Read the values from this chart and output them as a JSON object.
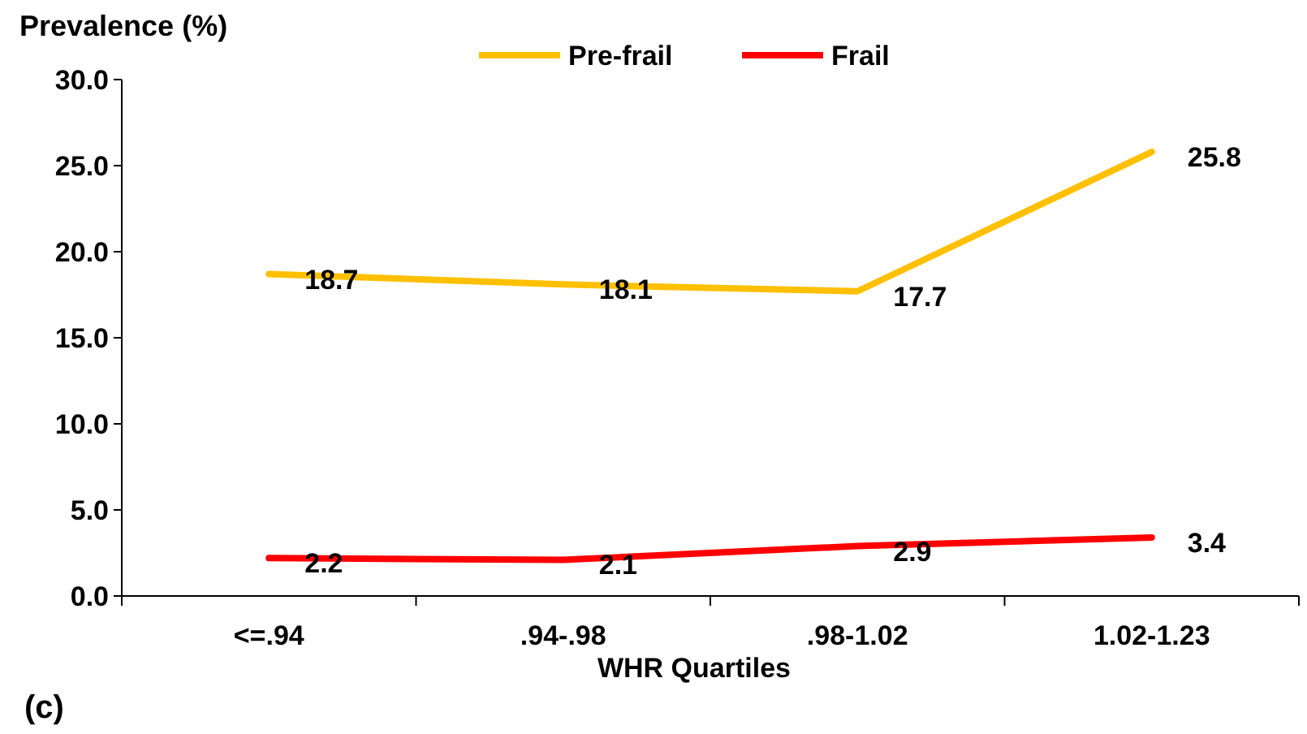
{
  "chart_data": {
    "type": "line",
    "ylabel": "Prevalence (%)",
    "xlabel": "WHR Quartiles",
    "annotations": [
      "(c)"
    ],
    "categories": [
      "<=.94",
      ".94-.98",
      ".98-1.02",
      "1.02-1.23"
    ],
    "series": [
      {
        "name": "Pre-frail",
        "color": "#ffc000",
        "values": [
          18.7,
          18.1,
          17.7,
          25.8
        ]
      },
      {
        "name": "Frail",
        "color": "#ff0000",
        "values": [
          2.2,
          2.1,
          2.9,
          3.4
        ]
      }
    ],
    "ylim": [
      0,
      30
    ],
    "yticks": [
      {
        "value": 0,
        "label": "0.0"
      },
      {
        "value": 5,
        "label": "5.0"
      },
      {
        "value": 10,
        "label": "10.0"
      },
      {
        "value": 15,
        "label": "15.0"
      },
      {
        "value": 20,
        "label": "20.0"
      },
      {
        "value": 25,
        "label": "25.0"
      },
      {
        "value": 30,
        "label": "30.0"
      }
    ],
    "data_labels": true,
    "legend": "top",
    "grid": false,
    "marker": "none",
    "line_style": "solid"
  }
}
